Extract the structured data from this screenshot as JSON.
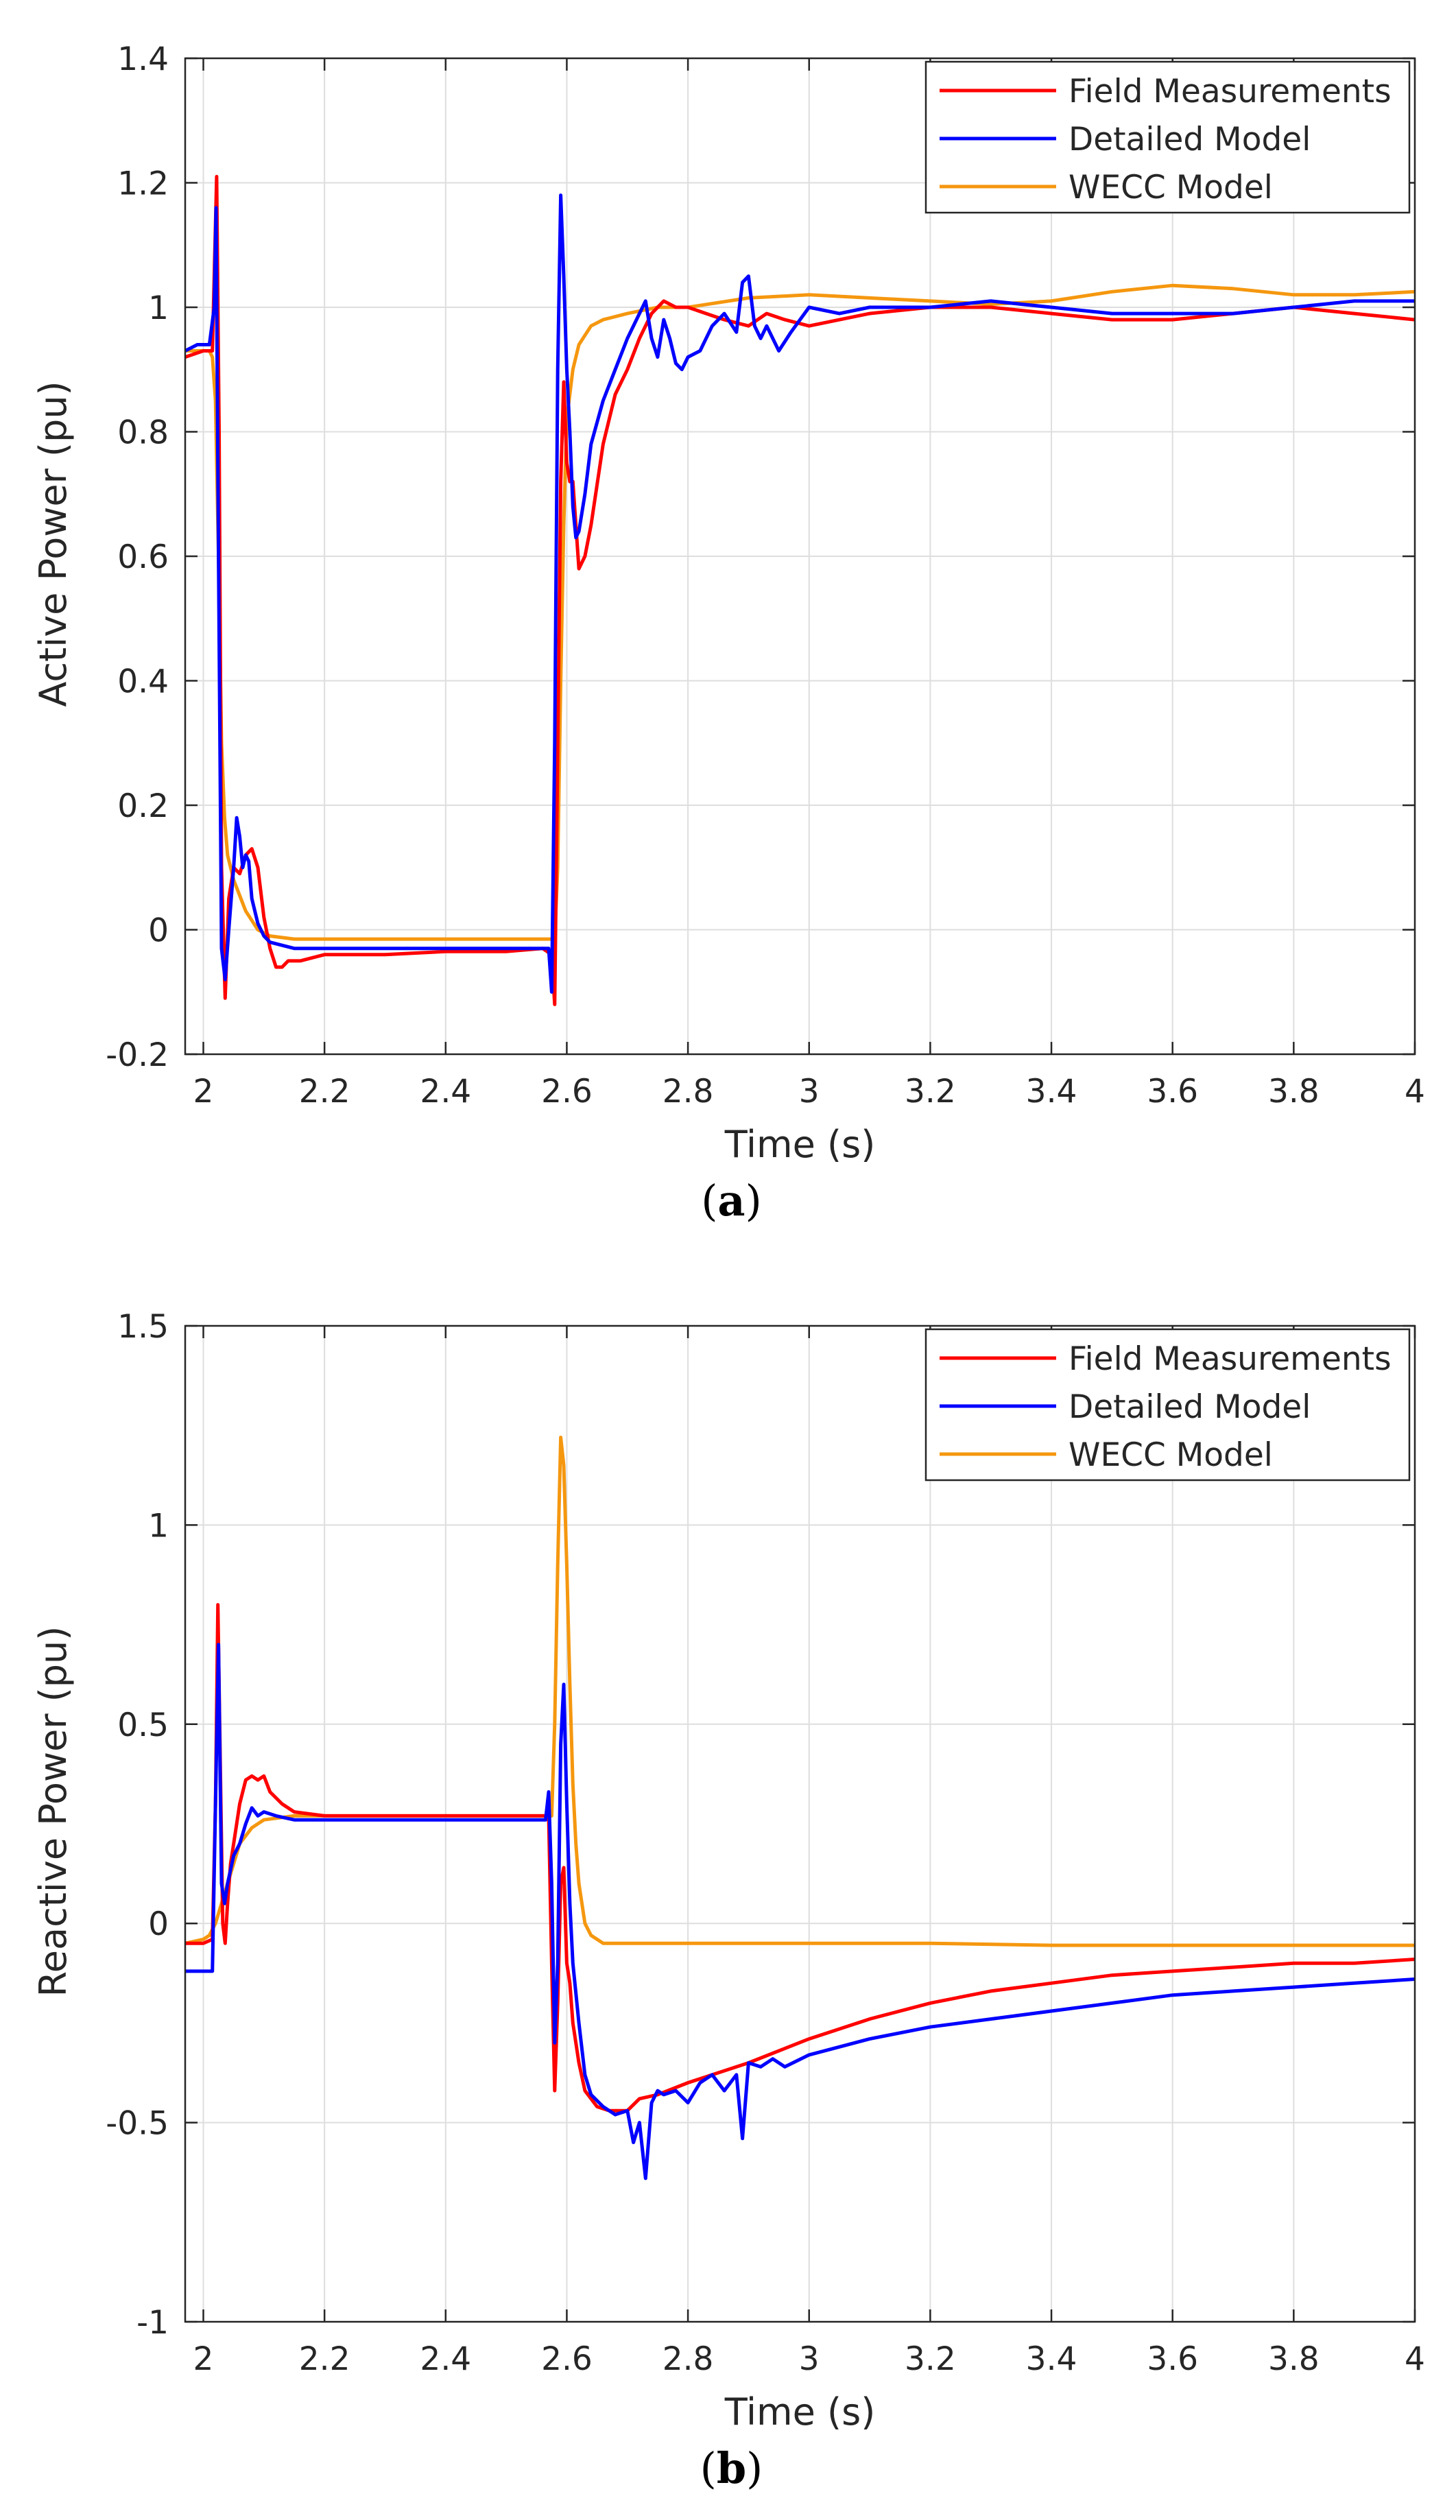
{
  "chart_data": [
    {
      "type": "line",
      "panel_caption": "a",
      "xlabel": "Time (s)",
      "ylabel": "Active Power (pu)",
      "xlim": [
        1.97,
        4.0
      ],
      "ylim": [
        -0.2,
        1.4
      ],
      "xticks": [
        2,
        2.2,
        2.4,
        2.6,
        2.8,
        3,
        3.2,
        3.4,
        3.6,
        3.8,
        4
      ],
      "xtick_labels": [
        "2",
        "2.2",
        "2.4",
        "2.6",
        "2.8",
        "3",
        "3.2",
        "3.4",
        "3.6",
        "3.8",
        "4"
      ],
      "yticks": [
        -0.2,
        0,
        0.2,
        0.4,
        0.6,
        0.8,
        1,
        1.2,
        1.4
      ],
      "ytick_labels": [
        "-0.2",
        "0",
        "0.2",
        "0.4",
        "0.6",
        "0.8",
        "1",
        "1.2",
        "1.4"
      ],
      "grid": true,
      "legend_position": "top-right",
      "series": [
        {
          "name": "Field Measurements",
          "color": "#ff0000",
          "x": [
            1.97,
            2.0,
            2.015,
            2.022,
            2.026,
            2.03,
            2.036,
            2.042,
            2.05,
            2.06,
            2.07,
            2.08,
            2.09,
            2.1,
            2.11,
            2.12,
            2.13,
            2.14,
            2.16,
            2.2,
            2.3,
            2.4,
            2.5,
            2.56,
            2.575,
            2.58,
            2.584,
            2.59,
            2.595,
            2.6,
            2.605,
            2.61,
            2.62,
            2.63,
            2.64,
            2.66,
            2.68,
            2.7,
            2.72,
            2.74,
            2.76,
            2.78,
            2.8,
            2.83,
            2.86,
            2.9,
            2.93,
            2.96,
            3.0,
            3.1,
            3.2,
            3.3,
            3.4,
            3.5,
            3.6,
            3.7,
            3.8,
            3.9,
            4.0
          ],
          "y": [
            0.92,
            0.93,
            0.93,
            1.21,
            0.8,
            0.1,
            -0.11,
            0.05,
            0.1,
            0.09,
            0.12,
            0.13,
            0.1,
            0.02,
            -0.03,
            -0.06,
            -0.06,
            -0.05,
            -0.05,
            -0.04,
            -0.04,
            -0.035,
            -0.035,
            -0.03,
            -0.04,
            -0.12,
            0.2,
            0.72,
            0.88,
            0.75,
            0.72,
            0.72,
            0.58,
            0.6,
            0.65,
            0.78,
            0.86,
            0.9,
            0.95,
            0.99,
            1.01,
            1.0,
            1.0,
            0.99,
            0.98,
            0.97,
            0.99,
            0.98,
            0.97,
            0.99,
            1.0,
            1.0,
            0.99,
            0.98,
            0.98,
            0.99,
            1.0,
            0.99,
            0.98
          ]
        },
        {
          "name": "Detailed Model",
          "color": "#0000ff",
          "x": [
            1.97,
            1.99,
            2.01,
            2.018,
            2.021,
            2.025,
            2.03,
            2.036,
            2.042,
            2.05,
            2.055,
            2.06,
            2.065,
            2.07,
            2.075,
            2.08,
            2.09,
            2.1,
            2.11,
            2.13,
            2.15,
            2.2,
            2.3,
            2.4,
            2.5,
            2.57,
            2.575,
            2.58,
            2.585,
            2.59,
            2.595,
            2.6,
            2.605,
            2.61,
            2.615,
            2.62,
            2.63,
            2.64,
            2.66,
            2.68,
            2.7,
            2.72,
            2.73,
            2.74,
            2.75,
            2.76,
            2.77,
            2.78,
            2.79,
            2.8,
            2.82,
            2.84,
            2.86,
            2.88,
            2.89,
            2.9,
            2.91,
            2.92,
            2.93,
            2.95,
            2.97,
            3.0,
            3.05,
            3.1,
            3.2,
            3.3,
            3.4,
            3.5,
            3.6,
            3.7,
            3.8,
            3.9,
            4.0
          ],
          "y": [
            0.93,
            0.94,
            0.94,
            1.0,
            1.16,
            0.6,
            -0.03,
            -0.08,
            0.0,
            0.1,
            0.18,
            0.15,
            0.1,
            0.12,
            0.11,
            0.05,
            0.01,
            -0.01,
            -0.02,
            -0.025,
            -0.03,
            -0.03,
            -0.03,
            -0.03,
            -0.03,
            -0.03,
            -0.1,
            0.3,
            0.9,
            1.18,
            1.05,
            0.9,
            0.8,
            0.68,
            0.63,
            0.64,
            0.7,
            0.78,
            0.85,
            0.9,
            0.95,
            0.99,
            1.01,
            0.95,
            0.92,
            0.98,
            0.95,
            0.91,
            0.9,
            0.92,
            0.93,
            0.97,
            0.99,
            0.96,
            1.04,
            1.05,
            0.97,
            0.95,
            0.97,
            0.93,
            0.96,
            1.0,
            0.99,
            1.0,
            1.0,
            1.01,
            1.0,
            0.99,
            0.99,
            0.99,
            1.0,
            1.01,
            1.01
          ]
        },
        {
          "name": "WECC Model",
          "color": "#f5970f",
          "x": [
            1.97,
            2.0,
            2.01,
            2.015,
            2.02,
            2.025,
            2.03,
            2.035,
            2.04,
            2.05,
            2.07,
            2.09,
            2.11,
            2.15,
            2.2,
            2.3,
            2.4,
            2.5,
            2.58,
            2.585,
            2.59,
            2.595,
            2.6,
            2.61,
            2.62,
            2.64,
            2.66,
            2.7,
            2.75,
            2.8,
            2.9,
            3.0,
            3.1,
            3.2,
            3.3,
            3.4,
            3.5,
            3.6,
            3.7,
            3.8,
            3.9,
            4.0
          ],
          "y": [
            0.93,
            0.93,
            0.93,
            0.92,
            0.85,
            0.6,
            0.3,
            0.18,
            0.12,
            0.08,
            0.03,
            0.0,
            -0.01,
            -0.015,
            -0.015,
            -0.015,
            -0.015,
            -0.015,
            -0.015,
            0.1,
            0.4,
            0.65,
            0.82,
            0.9,
            0.94,
            0.97,
            0.98,
            0.99,
            1.0,
            1.0,
            1.015,
            1.02,
            1.015,
            1.01,
            1.005,
            1.01,
            1.025,
            1.035,
            1.03,
            1.02,
            1.02,
            1.025
          ]
        }
      ]
    },
    {
      "type": "line",
      "panel_caption": "b",
      "xlabel": "Time (s)",
      "ylabel": "Reactive Power (pu)",
      "xlim": [
        1.97,
        4.0
      ],
      "ylim": [
        -1.0,
        1.5
      ],
      "xticks": [
        2,
        2.2,
        2.4,
        2.6,
        2.8,
        3,
        3.2,
        3.4,
        3.6,
        3.8,
        4
      ],
      "xtick_labels": [
        "2",
        "2.2",
        "2.4",
        "2.6",
        "2.8",
        "3",
        "3.2",
        "3.4",
        "3.6",
        "3.8",
        "4"
      ],
      "yticks": [
        -1,
        -0.5,
        0,
        0.5,
        1,
        1.5
      ],
      "ytick_labels": [
        "-1",
        "-0.5",
        "0",
        "0.5",
        "1",
        "1.5"
      ],
      "grid": true,
      "legend_position": "top-right",
      "series": [
        {
          "name": "Field Measurements",
          "color": "#ff0000",
          "x": [
            1.97,
            2.0,
            2.015,
            2.02,
            2.024,
            2.028,
            2.032,
            2.036,
            2.04,
            2.045,
            2.05,
            2.06,
            2.07,
            2.08,
            2.09,
            2.1,
            2.11,
            2.13,
            2.15,
            2.2,
            2.3,
            2.4,
            2.5,
            2.57,
            2.575,
            2.58,
            2.585,
            2.59,
            2.595,
            2.6,
            2.605,
            2.61,
            2.62,
            2.63,
            2.65,
            2.67,
            2.7,
            2.72,
            2.75,
            2.8,
            2.9,
            3.0,
            3.1,
            3.2,
            3.3,
            3.4,
            3.5,
            3.6,
            3.7,
            3.8,
            3.9,
            4.0
          ],
          "y": [
            -0.05,
            -0.05,
            -0.04,
            0.3,
            0.8,
            0.4,
            0.0,
            -0.05,
            0.05,
            0.15,
            0.2,
            0.3,
            0.36,
            0.37,
            0.36,
            0.37,
            0.33,
            0.3,
            0.28,
            0.27,
            0.27,
            0.27,
            0.27,
            0.27,
            -0.1,
            -0.42,
            -0.2,
            0.1,
            0.14,
            -0.1,
            -0.15,
            -0.25,
            -0.35,
            -0.42,
            -0.46,
            -0.47,
            -0.47,
            -0.44,
            -0.43,
            -0.4,
            -0.35,
            -0.29,
            -0.24,
            -0.2,
            -0.17,
            -0.15,
            -0.13,
            -0.12,
            -0.11,
            -0.1,
            -0.1,
            -0.09
          ]
        },
        {
          "name": "Detailed Model",
          "color": "#0000ff",
          "x": [
            1.97,
            1.99,
            2.0,
            2.015,
            2.02,
            2.025,
            2.03,
            2.035,
            2.04,
            2.05,
            2.06,
            2.07,
            2.08,
            2.09,
            2.1,
            2.12,
            2.15,
            2.2,
            2.3,
            2.4,
            2.5,
            2.565,
            2.57,
            2.575,
            2.58,
            2.585,
            2.59,
            2.595,
            2.6,
            2.605,
            2.61,
            2.62,
            2.63,
            2.64,
            2.66,
            2.68,
            2.7,
            2.71,
            2.72,
            2.73,
            2.74,
            2.75,
            2.76,
            2.78,
            2.8,
            2.82,
            2.84,
            2.86,
            2.88,
            2.89,
            2.9,
            2.92,
            2.94,
            2.96,
            3.0,
            3.1,
            3.2,
            3.3,
            3.4,
            3.5,
            3.6,
            3.7,
            3.8,
            3.9,
            4.0
          ],
          "y": [
            -0.12,
            -0.12,
            -0.12,
            -0.12,
            0.3,
            0.7,
            0.1,
            0.05,
            0.1,
            0.17,
            0.2,
            0.25,
            0.29,
            0.27,
            0.28,
            0.27,
            0.26,
            0.26,
            0.26,
            0.26,
            0.26,
            0.26,
            0.33,
            0.1,
            -0.3,
            -0.1,
            0.45,
            0.6,
            0.3,
            0.05,
            -0.1,
            -0.25,
            -0.38,
            -0.43,
            -0.46,
            -0.48,
            -0.47,
            -0.55,
            -0.5,
            -0.64,
            -0.45,
            -0.42,
            -0.43,
            -0.42,
            -0.45,
            -0.4,
            -0.38,
            -0.42,
            -0.38,
            -0.54,
            -0.35,
            -0.36,
            -0.34,
            -0.36,
            -0.33,
            -0.29,
            -0.26,
            -0.24,
            -0.22,
            -0.2,
            -0.18,
            -0.17,
            -0.16,
            -0.15,
            -0.14
          ]
        },
        {
          "name": "WECC Model",
          "color": "#f5970f",
          "x": [
            1.97,
            2.0,
            2.01,
            2.02,
            2.03,
            2.04,
            2.05,
            2.06,
            2.08,
            2.1,
            2.15,
            2.2,
            2.3,
            2.4,
            2.5,
            2.575,
            2.58,
            2.585,
            2.59,
            2.595,
            2.6,
            2.605,
            2.61,
            2.615,
            2.62,
            2.63,
            2.64,
            2.66,
            2.7,
            2.8,
            2.9,
            3.0,
            3.2,
            3.4,
            3.6,
            3.8,
            4.0
          ],
          "y": [
            -0.05,
            -0.04,
            -0.03,
            0.0,
            0.05,
            0.1,
            0.15,
            0.2,
            0.24,
            0.26,
            0.27,
            0.27,
            0.27,
            0.27,
            0.27,
            0.27,
            0.5,
            0.9,
            1.22,
            1.15,
            0.9,
            0.6,
            0.35,
            0.2,
            0.1,
            0.0,
            -0.03,
            -0.05,
            -0.05,
            -0.05,
            -0.05,
            -0.05,
            -0.05,
            -0.055,
            -0.055,
            -0.055,
            -0.055
          ]
        }
      ]
    }
  ]
}
